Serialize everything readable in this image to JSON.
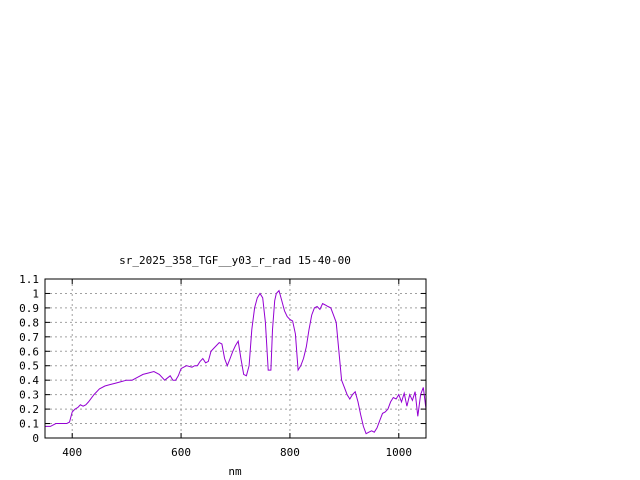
{
  "chart_data": {
    "type": "line",
    "title": "sr_2025_358_TGF__y03_r_rad 15-40-00",
    "xlabel": "nm",
    "ylabel": "",
    "xlim": [
      350,
      1050
    ],
    "ylim": [
      0,
      1.1
    ],
    "xticks": [
      400,
      600,
      800,
      1000
    ],
    "xtick_labels": [
      "400",
      "600",
      "800",
      "1000"
    ],
    "yticks": [
      0,
      0.1,
      0.2,
      0.3,
      0.4,
      0.5,
      0.6,
      0.7,
      0.8,
      0.9,
      1,
      1.1
    ],
    "ytick_labels": [
      "0",
      "0.1",
      "0.2",
      "0.3",
      "0.4",
      "0.5",
      "0.6",
      "0.7",
      "0.8",
      "0.9",
      "1",
      "1.1"
    ],
    "grid": true,
    "series_color": "#9400d3",
    "series": [
      {
        "x": [
          350,
          360,
          370,
          380,
          390,
          395,
          400,
          405,
          410,
          415,
          420,
          425,
          430,
          440,
          450,
          460,
          470,
          480,
          490,
          500,
          510,
          520,
          530,
          540,
          550,
          560,
          570,
          580,
          585,
          590,
          595,
          600,
          610,
          620,
          625,
          630,
          635,
          640,
          645,
          650,
          655,
          660,
          670,
          675,
          680,
          685,
          690,
          695,
          700,
          705,
          710,
          715,
          720,
          725,
          730,
          735,
          740,
          745,
          750,
          755,
          760,
          765,
          768,
          772,
          775,
          780,
          785,
          790,
          795,
          800,
          805,
          810,
          815,
          820,
          825,
          830,
          835,
          840,
          845,
          850,
          855,
          860,
          865,
          870,
          875,
          880,
          885,
          890,
          895,
          900,
          905,
          910,
          915,
          920,
          925,
          930,
          935,
          940,
          945,
          950,
          955,
          960,
          965,
          970,
          975,
          980,
          985,
          990,
          995,
          1000,
          1005,
          1010,
          1015,
          1020,
          1025,
          1030,
          1035,
          1040,
          1045,
          1050
        ],
        "y": [
          0.08,
          0.08,
          0.1,
          0.1,
          0.1,
          0.11,
          0.18,
          0.2,
          0.21,
          0.23,
          0.22,
          0.23,
          0.25,
          0.3,
          0.34,
          0.36,
          0.37,
          0.38,
          0.39,
          0.4,
          0.4,
          0.42,
          0.44,
          0.45,
          0.46,
          0.44,
          0.4,
          0.43,
          0.4,
          0.4,
          0.43,
          0.48,
          0.5,
          0.49,
          0.5,
          0.5,
          0.53,
          0.55,
          0.52,
          0.53,
          0.6,
          0.62,
          0.66,
          0.65,
          0.55,
          0.5,
          0.55,
          0.6,
          0.64,
          0.67,
          0.55,
          0.44,
          0.43,
          0.5,
          0.75,
          0.9,
          0.97,
          1.0,
          0.97,
          0.8,
          0.47,
          0.47,
          0.75,
          0.95,
          1.0,
          1.02,
          0.95,
          0.88,
          0.84,
          0.82,
          0.81,
          0.72,
          0.47,
          0.5,
          0.55,
          0.63,
          0.75,
          0.85,
          0.9,
          0.91,
          0.89,
          0.93,
          0.92,
          0.91,
          0.9,
          0.85,
          0.8,
          0.6,
          0.4,
          0.35,
          0.3,
          0.27,
          0.3,
          0.32,
          0.25,
          0.16,
          0.08,
          0.03,
          0.04,
          0.05,
          0.04,
          0.07,
          0.12,
          0.17,
          0.18,
          0.2,
          0.25,
          0.28,
          0.27,
          0.3,
          0.25,
          0.31,
          0.22,
          0.3,
          0.26,
          0.32,
          0.15,
          0.3,
          0.35,
          0.2
        ]
      }
    ]
  }
}
